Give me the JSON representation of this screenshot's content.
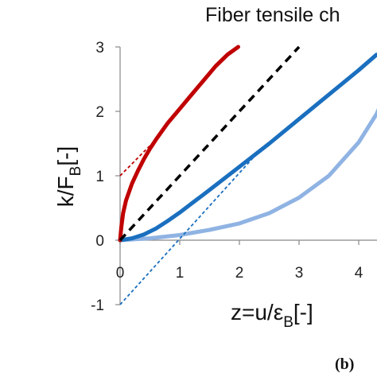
{
  "chart_data": {
    "type": "line",
    "title": "Fiber tensile ch",
    "xlabel": {
      "main": "z=u/ε",
      "sub": "B",
      "tail": "[-]"
    },
    "ylabel": {
      "main": "k/F",
      "sub": "B",
      "tail": "[-]"
    },
    "xlim": [
      0,
      4.6
    ],
    "ylim": [
      -1,
      3
    ],
    "xticks": [
      "0",
      "1",
      "2",
      "3",
      "4"
    ],
    "yticks": [
      "3",
      "2",
      "1",
      "0",
      "-1"
    ],
    "grid": false,
    "panel_label": "(b)",
    "series": [
      {
        "color": "#c00000",
        "style": "solid",
        "x": [
          0,
          0.02,
          0.05,
          0.1,
          0.2,
          0.3,
          0.4,
          0.5,
          0.6,
          0.8,
          1.0,
          1.2,
          1.4,
          1.6,
          1.8,
          1.98
        ],
        "y": [
          0,
          0.2,
          0.42,
          0.62,
          0.88,
          1.08,
          1.26,
          1.42,
          1.56,
          1.82,
          2.04,
          2.26,
          2.48,
          2.7,
          2.88,
          3.0
        ]
      },
      {
        "color": "#c00000",
        "style": "dotted",
        "x": [
          0,
          0.6
        ],
        "y": [
          1.0,
          1.56
        ]
      },
      {
        "color": "#000000",
        "style": "dashed",
        "x": [
          0,
          3.0
        ],
        "y": [
          0,
          3.0
        ]
      },
      {
        "color": "#1a6fbf",
        "style": "solid",
        "x": [
          0,
          0.2,
          0.4,
          0.6,
          0.8,
          1.0,
          1.2,
          1.5,
          2.0,
          2.5,
          3.0,
          3.5,
          4.0,
          4.3
        ],
        "y": [
          0,
          0.03,
          0.09,
          0.18,
          0.3,
          0.43,
          0.57,
          0.78,
          1.14,
          1.5,
          1.88,
          2.26,
          2.64,
          2.88
        ]
      },
      {
        "color": "#1a6fbf",
        "style": "dotted",
        "x": [
          0,
          2.3
        ],
        "y": [
          -1.0,
          1.35
        ]
      },
      {
        "color": "#8fb3e3",
        "style": "solid",
        "x": [
          0,
          0.5,
          1.0,
          1.5,
          2.0,
          2.5,
          3.0,
          3.5,
          4.0,
          4.3,
          4.6
        ],
        "y": [
          0,
          0.03,
          0.08,
          0.16,
          0.26,
          0.42,
          0.66,
          1.0,
          1.52,
          1.96,
          2.6
        ]
      }
    ]
  }
}
